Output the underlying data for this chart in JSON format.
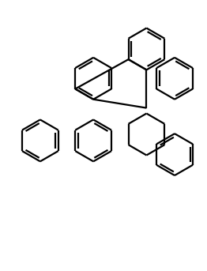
{
  "bg_color": "#ffffff",
  "line_color": "#000000",
  "lw": 1.6,
  "figsize": [
    2.62,
    3.43
  ],
  "dpi": 100,
  "xlim": [
    0,
    10
  ],
  "ylim": [
    0,
    13
  ]
}
